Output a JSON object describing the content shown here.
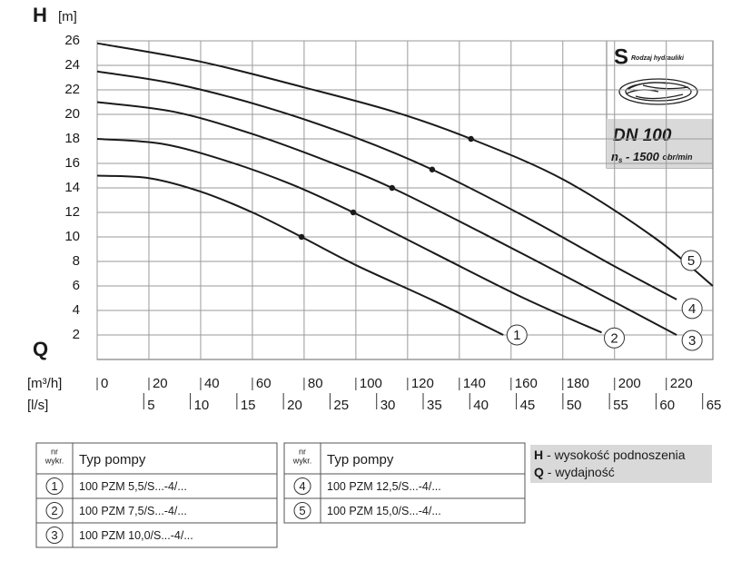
{
  "chart_data": {
    "type": "line",
    "y_label": "H",
    "y_unit": "[m]",
    "x_label": "Q",
    "x_unit": "[m³/h]",
    "x2_unit": "[l/s]",
    "xlim": [
      0,
      238
    ],
    "ylim": [
      0,
      26
    ],
    "xticks": [
      0,
      20,
      40,
      60,
      80,
      100,
      120,
      140,
      160,
      180,
      200,
      220
    ],
    "yticks": [
      2,
      4,
      6,
      8,
      10,
      12,
      14,
      16,
      18,
      20,
      22,
      24,
      26
    ],
    "x2lim": [
      0,
      66.1
    ],
    "x2ticks": [
      5,
      10,
      15,
      20,
      25,
      30,
      35,
      40,
      45,
      50,
      55,
      60,
      65
    ],
    "grid": true,
    "series": [
      {
        "name": "1",
        "color": "#1a1a1a",
        "x": [
          0,
          20,
          40,
          60,
          79,
          100,
          130,
          157
        ],
        "values": [
          15,
          14.8,
          13.7,
          12,
          10,
          7.7,
          4.8,
          2
        ],
        "duty_x": 79,
        "duty_y": 10
      },
      {
        "name": "2",
        "color": "#1a1a1a",
        "x": [
          0,
          25,
          50,
          75,
          99,
          130,
          165,
          195
        ],
        "values": [
          18,
          17.6,
          16.2,
          14.3,
          12,
          8.7,
          5,
          2.2
        ],
        "duty_x": 99,
        "duty_y": 12
      },
      {
        "name": "3",
        "color": "#1a1a1a",
        "x": [
          0,
          30,
          60,
          90,
          114,
          150,
          190,
          224
        ],
        "values": [
          21,
          20.2,
          18.4,
          16.1,
          14,
          10.2,
          5.8,
          2
        ],
        "duty_x": 114,
        "duty_y": 14
      },
      {
        "name": "4",
        "color": "#1a1a1a",
        "x": [
          0,
          30,
          65,
          100,
          129.5,
          165,
          200,
          224
        ],
        "values": [
          23.5,
          22.5,
          20.6,
          18.1,
          15.5,
          11.7,
          7.6,
          4.9
        ],
        "duty_x": 129.5,
        "duty_y": 15.5
      },
      {
        "name": "5",
        "color": "#1a1a1a",
        "x": [
          0,
          40,
          80,
          115,
          144.5,
          180,
          215,
          238
        ],
        "values": [
          25.8,
          24.3,
          22.2,
          20.2,
          18,
          14.7,
          10,
          6
        ],
        "duty_x": 144.5,
        "duty_y": 18
      }
    ],
    "hydraulics": {
      "symbol": "S",
      "label": "Rodzaj hydrauliki",
      "dn": "DN 100",
      "ns_n": "n",
      "ns_s": "s",
      "ns_text": " - 1500 ",
      "ns_unit": "obr/min"
    }
  },
  "tables": [
    {
      "header": [
        "nr",
        "wykr.",
        "Typ pompy"
      ],
      "rows": [
        [
          "1",
          "100 PZM 5,5/S...-4/..."
        ],
        [
          "2",
          "100 PZM 7,5/S...-4/..."
        ],
        [
          "3",
          "100 PZM 10,0/S...-4/..."
        ]
      ]
    },
    {
      "header": [
        "nr",
        "wykr.",
        "Typ pompy"
      ],
      "rows": [
        [
          "4",
          "100 PZM 12,5/S...-4/..."
        ],
        [
          "5",
          "100 PZM 15,0/S...-4/..."
        ]
      ]
    }
  ],
  "notes": [
    {
      "key": "H",
      "text": " - wysokość podnoszenia"
    },
    {
      "key": "Q",
      "text": " - wydajność"
    }
  ]
}
